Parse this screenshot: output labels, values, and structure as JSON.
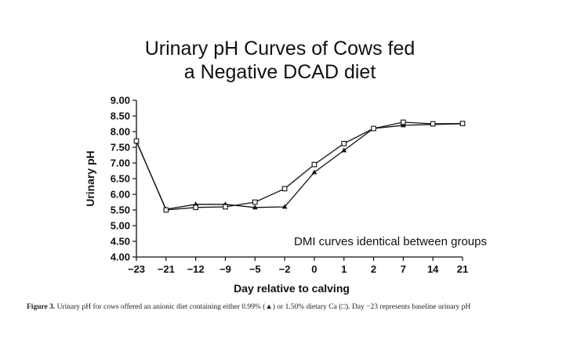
{
  "chart_data": {
    "type": "line",
    "title_lines": [
      "Urinary pH Curves of Cows fed",
      "a Negative DCAD diet"
    ],
    "xlabel": "Day relative to calving",
    "ylabel": "Urinary pH",
    "categories": [
      "−23",
      "−21",
      "−12",
      "−9",
      "−5",
      "−2",
      "0",
      "1",
      "2",
      "7",
      "14",
      "21"
    ],
    "ylim": [
      4.0,
      9.0
    ],
    "yticks": [
      "4.00",
      "4.50",
      "5.00",
      "5.50",
      "6.00",
      "6.50",
      "7.00",
      "7.50",
      "8.00",
      "8.50",
      "9.00"
    ],
    "series": [
      {
        "marker": "triangle",
        "values": [
          7.68,
          5.52,
          5.68,
          5.68,
          5.58,
          5.6,
          6.7,
          7.4,
          8.1,
          8.2,
          8.23,
          8.25
        ]
      },
      {
        "marker": "square",
        "values": [
          7.7,
          5.5,
          5.58,
          5.6,
          5.75,
          6.18,
          6.95,
          7.62,
          8.1,
          8.3,
          8.25,
          8.26
        ]
      }
    ],
    "annotation": "DMI curves identical between groups",
    "grid": false
  },
  "caption": {
    "label": "Figure 3.",
    "text": "Urinary pH for cows offered an anionic diet containing either 0.99% (▲) or 1.50% dietary Ca (□). Day −23 represents baseline urinary pH"
  }
}
